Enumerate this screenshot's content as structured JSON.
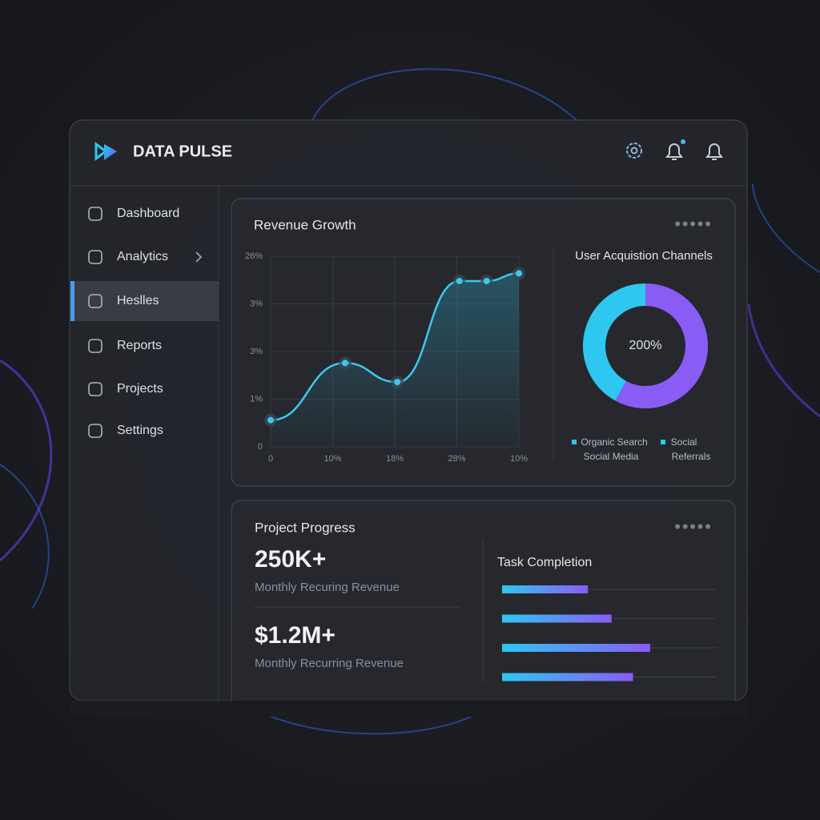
{
  "brand": "DATA PULSE",
  "nav": {
    "items": [
      {
        "label": "Dashboard"
      },
      {
        "label": "Analytics"
      },
      {
        "label": "Heslles"
      },
      {
        "label": "Reports"
      },
      {
        "label": "Projects"
      },
      {
        "label": "Settings"
      }
    ],
    "active": 2
  },
  "revenue": {
    "title": "Revenue Growth",
    "y_labels": [
      "26%",
      "3%",
      "3%",
      "1%",
      "0"
    ],
    "x_labels": [
      "0",
      "10%",
      "18%",
      "28%",
      "10%"
    ],
    "x": [
      0,
      30,
      51,
      76,
      87,
      100
    ],
    "values": [
      14,
      44,
      34,
      87,
      87,
      91
    ],
    "xlim": [
      0,
      100
    ],
    "ylim": [
      0,
      100
    ],
    "color": "#3cc8ee"
  },
  "channels": {
    "title": "User Acquistion Channels",
    "center_label": "200%",
    "segments": [
      {
        "name": [
          "Social",
          "Referrals"
        ],
        "color": "#8a5cf6",
        "value": 58
      },
      {
        "name": [
          "Organic Search",
          "Social Media"
        ],
        "color": "#2ec7f0",
        "value": 42
      }
    ]
  },
  "progress": {
    "title": "Project Progress",
    "stats": [
      {
        "value": "250K+",
        "label": "Monthly Recuring Revenue"
      },
      {
        "value": "$1.2M+",
        "label": "Monthly Recurring Revenue"
      }
    ]
  },
  "tasks": {
    "title": "Task Completion",
    "values": [
      40,
      51,
      69,
      61
    ],
    "xlim": [
      0,
      100
    ]
  }
}
